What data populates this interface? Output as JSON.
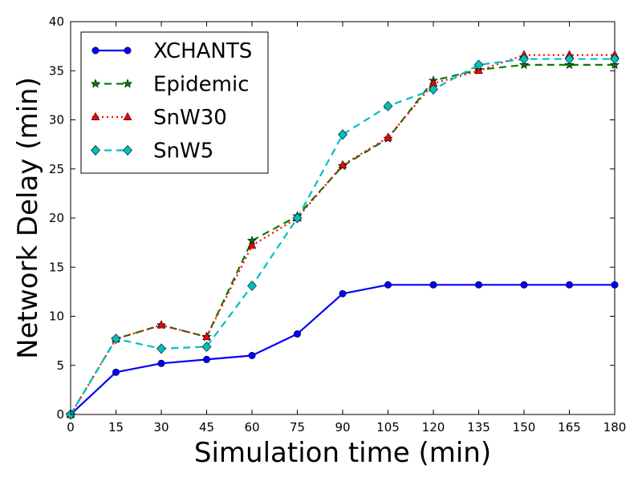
{
  "chart_data": {
    "type": "line",
    "xlabel": "Simulation time (min)",
    "ylabel": "Network Delay (min)",
    "xlim": [
      0,
      180
    ],
    "ylim": [
      0,
      40
    ],
    "xticks": [
      0,
      15,
      30,
      45,
      60,
      75,
      90,
      105,
      120,
      135,
      150,
      165,
      180
    ],
    "yticks": [
      0,
      5,
      10,
      15,
      20,
      25,
      30,
      35,
      40
    ],
    "grid": false,
    "legend_position": "top-left",
    "x": [
      0,
      15,
      30,
      45,
      60,
      75,
      90,
      105,
      120,
      135,
      150,
      165,
      180
    ],
    "series": [
      {
        "name": "XCHANTS",
        "values": [
          0,
          4.3,
          5.2,
          5.6,
          6.0,
          8.2,
          12.3,
          13.2,
          13.2,
          13.2,
          13.2,
          13.2,
          13.2
        ],
        "color": "#0000ff",
        "line_style": "solid",
        "marker": "circle"
      },
      {
        "name": "Epidemic",
        "values": [
          0,
          7.7,
          9.1,
          7.9,
          17.7,
          20.2,
          25.3,
          28.1,
          34.0,
          35.1,
          35.6,
          35.6,
          35.6
        ],
        "color": "#008000",
        "line_style": "dashed",
        "marker": "star"
      },
      {
        "name": "SnW30",
        "values": [
          0,
          7.7,
          9.1,
          7.9,
          17.2,
          20.0,
          25.4,
          28.2,
          33.7,
          35.0,
          36.6,
          36.6,
          36.6
        ],
        "color": "#ff0000",
        "line_style": "dotted",
        "marker": "triangle"
      },
      {
        "name": "SnW5",
        "values": [
          0,
          7.7,
          6.7,
          6.9,
          13.1,
          20.0,
          28.5,
          31.4,
          33.1,
          35.6,
          36.2,
          36.2,
          36.2
        ],
        "color": "#00bfbf",
        "line_style": "dashed",
        "marker": "diamond"
      }
    ]
  }
}
